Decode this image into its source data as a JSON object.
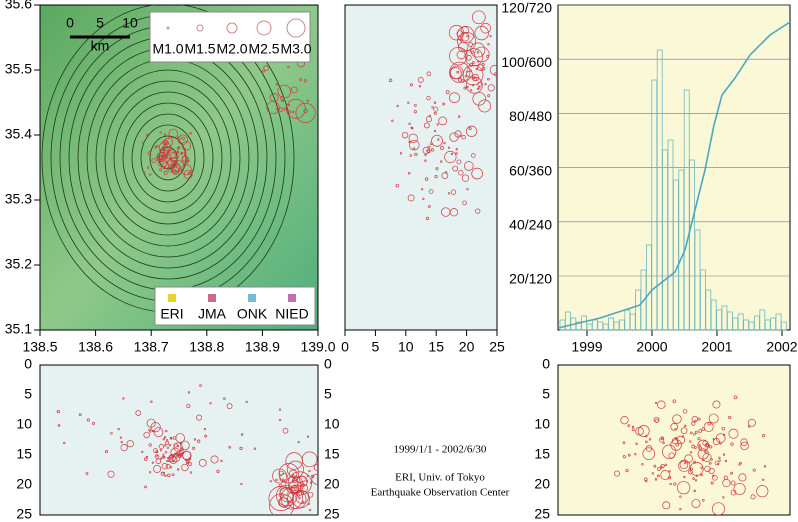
{
  "map": {
    "lon_ticks": [
      "138.5",
      "138.6",
      "138.7",
      "138.8",
      "138.9",
      "139.0"
    ],
    "lat_ticks": [
      "35.6",
      "35.5",
      "35.4",
      "35.3",
      "35.2",
      "35.1"
    ],
    "scale": {
      "ticks": [
        "0",
        "5",
        "10"
      ],
      "unit": "km"
    },
    "magnitude_legend": [
      "M1.0",
      "M1.5",
      "M2.0",
      "M2.5",
      "M3.0"
    ],
    "station_legend": [
      "ERI",
      "JMA",
      "ONK",
      "NIED"
    ]
  },
  "depth_ticks": [
    "0",
    "5",
    "10",
    "15",
    "20",
    "25"
  ],
  "time_panel": {
    "y_ticks": [
      "120/720",
      "100/600",
      "80/480",
      "60/360",
      "40/240",
      "20/120"
    ],
    "x_ticks": [
      "1999",
      "2000",
      "2001",
      "2002"
    ]
  },
  "caption": {
    "period": "1999/1/1 - 2002/6/30",
    "institution": "ERI, Univ. of Tokyo",
    "center": "Earthquake Observation Center"
  }
}
